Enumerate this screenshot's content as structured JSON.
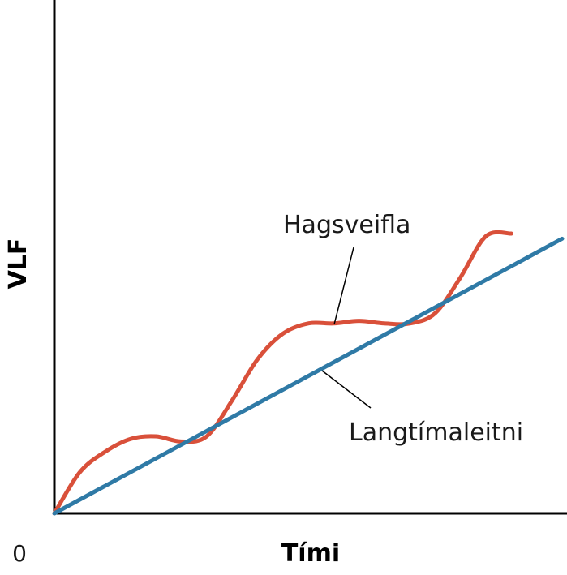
{
  "chart_data": {
    "type": "line",
    "title": "",
    "xlabel": "Tími",
    "ylabel": "VLF",
    "origin_label": "0",
    "xlim": [
      0,
      10
    ],
    "ylim": [
      0,
      10
    ],
    "grid": false,
    "legend": "none",
    "series": [
      {
        "name": "Langtímaleitni",
        "color": "#2f7aa6",
        "x": [
          0,
          10
        ],
        "y": [
          0,
          5.35
        ]
      },
      {
        "name": "Hagsveifla",
        "color": "#d9503a",
        "x": [
          0,
          0.5,
          1.0,
          1.5,
          2.0,
          2.5,
          3.0,
          3.5,
          4.0,
          4.5,
          5.0,
          5.5,
          6.0,
          6.5,
          7.0,
          7.5,
          8.0,
          8.5,
          9.0
        ],
        "y": [
          0,
          0.8,
          1.2,
          1.45,
          1.5,
          1.4,
          1.5,
          2.2,
          3.0,
          3.5,
          3.7,
          3.7,
          3.75,
          3.7,
          3.7,
          3.9,
          4.6,
          5.4,
          5.45
        ]
      }
    ],
    "annotations": [
      {
        "text": "Hagsveifla",
        "points_to": "Hagsveifla"
      },
      {
        "text": "Langtímaleitni",
        "points_to": "Langtímaleitni"
      }
    ]
  }
}
